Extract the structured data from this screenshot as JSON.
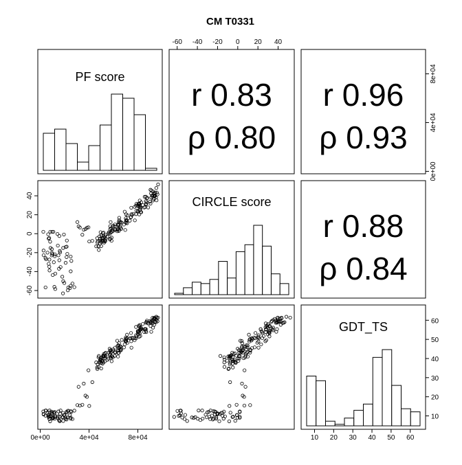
{
  "chart_data": {
    "type": "scatter-matrix",
    "title": "CM T0331",
    "variables": [
      "PF score",
      "CIRCLE score",
      "GDT_TS"
    ],
    "tick_labels": {
      "pf": [
        "0e+00",
        "4e+04",
        "8e+04"
      ],
      "pf_top_right": [
        "0e+00",
        "4e+04",
        "8e+04"
      ],
      "circle": [
        "-60",
        "-40",
        "-20",
        "0",
        "20",
        "40"
      ],
      "circle_left": [
        "-60",
        "-40",
        "-20",
        "0",
        "20",
        "40"
      ],
      "gdt": [
        "10",
        "20",
        "30",
        "40",
        "50",
        "60"
      ]
    },
    "correlations": {
      "pf_circle": {
        "r": "r 0.83",
        "rho": "ρ 0.80"
      },
      "pf_gdt": {
        "r": "r 0.96",
        "rho": "ρ 0.93"
      },
      "circle_gdt": {
        "r": "r 0.88",
        "rho": "ρ 0.84"
      }
    },
    "histograms": {
      "pf": {
        "edges": [
          0,
          10000,
          20000,
          30000,
          40000,
          50000,
          60000,
          70000,
          80000,
          90000,
          100000
        ],
        "counts": [
          18,
          20,
          13,
          4,
          12,
          22,
          37,
          35,
          27,
          1
        ]
      },
      "circle": {
        "edges": [
          -70,
          -60,
          -50,
          -40,
          -30,
          -20,
          -10,
          0,
          10,
          20,
          30,
          40,
          50,
          60
        ],
        "counts": [
          1,
          5,
          9,
          8,
          11,
          24,
          12,
          31,
          36,
          50,
          35,
          15,
          8
        ]
      },
      "gdt": {
        "edges": [
          5,
          10,
          15,
          20,
          25,
          30,
          35,
          40,
          45,
          50,
          55,
          60,
          65
        ],
        "counts": [
          32,
          29,
          3,
          1,
          5,
          10,
          14,
          44,
          49,
          26,
          11,
          9
        ]
      }
    },
    "ranges": {
      "pf": [
        -2000,
        100000
      ],
      "circle": [
        -68,
        56
      ],
      "gdt": [
        3,
        68
      ]
    }
  }
}
